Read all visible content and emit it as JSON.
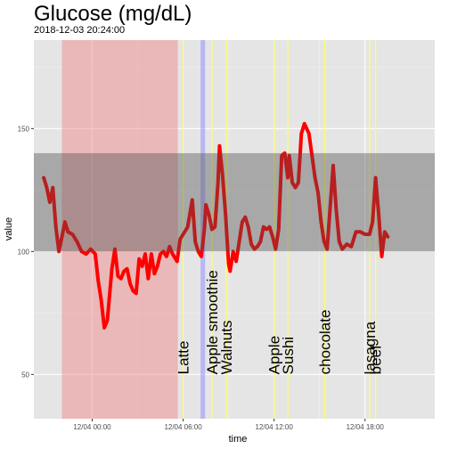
{
  "chart_data": {
    "type": "line",
    "title": "Glucose (mg/dL)",
    "subtitle": "2018-12-03 20:24:00",
    "xlabel": "time",
    "ylabel": "value",
    "x_ticks": [
      {
        "hour": 0,
        "label": "12/04 00:00"
      },
      {
        "hour": 6,
        "label": "12/04 06:00"
      },
      {
        "hour": 12,
        "label": "12/04 12:00"
      },
      {
        "hour": 18,
        "label": "12/04 18:00"
      }
    ],
    "y_ticks": [
      50,
      100,
      150
    ],
    "xlim_hours": [
      -3.85,
      22.6
    ],
    "ylim": [
      32,
      186
    ],
    "target_band": {
      "ymin": 100,
      "ymax": 140,
      "color": "#4d4d4d"
    },
    "sleep_region": {
      "start_hour": -2.0,
      "end_hour": 5.65,
      "color": "#f08080"
    },
    "activity_region": {
      "start_hour": 7.15,
      "end_hour": 7.45,
      "color": "#7f7fff"
    },
    "meal_marker_color": "#ffff66",
    "series": [
      {
        "line_color": "#ff0000",
        "points": [
          [
            -3.2,
            130
          ],
          [
            -3.0,
            126
          ],
          [
            -2.8,
            120
          ],
          [
            -2.6,
            126
          ],
          [
            -2.4,
            110
          ],
          [
            -2.2,
            100
          ],
          [
            -2.0,
            106
          ],
          [
            -1.8,
            112
          ],
          [
            -1.6,
            108
          ],
          [
            -1.3,
            107
          ],
          [
            -1.0,
            104
          ],
          [
            -0.7,
            100
          ],
          [
            -0.4,
            99
          ],
          [
            -0.1,
            101
          ],
          [
            0.2,
            99
          ],
          [
            0.4,
            88
          ],
          [
            0.6,
            80
          ],
          [
            0.8,
            69
          ],
          [
            1.0,
            72
          ],
          [
            1.3,
            93
          ],
          [
            1.5,
            101
          ],
          [
            1.7,
            90
          ],
          [
            1.9,
            89
          ],
          [
            2.1,
            92
          ],
          [
            2.3,
            93
          ],
          [
            2.5,
            87
          ],
          [
            2.7,
            84
          ],
          [
            2.9,
            83
          ],
          [
            3.1,
            97
          ],
          [
            3.3,
            94
          ],
          [
            3.5,
            99
          ],
          [
            3.7,
            89
          ],
          [
            3.9,
            99
          ],
          [
            4.1,
            91
          ],
          [
            4.3,
            94
          ],
          [
            4.5,
            99
          ],
          [
            4.7,
            100
          ],
          [
            4.9,
            98
          ],
          [
            5.1,
            102
          ],
          [
            5.3,
            99
          ],
          [
            5.6,
            96
          ],
          [
            5.8,
            105
          ],
          [
            6.0,
            107
          ],
          [
            6.3,
            110
          ],
          [
            6.6,
            121
          ],
          [
            6.8,
            104
          ],
          [
            7.0,
            100
          ],
          [
            7.2,
            98
          ],
          [
            7.4,
            109
          ],
          [
            7.5,
            119
          ],
          [
            7.7,
            115
          ],
          [
            7.9,
            109
          ],
          [
            8.1,
            110
          ],
          [
            8.3,
            128
          ],
          [
            8.4,
            143
          ],
          [
            8.6,
            131
          ],
          [
            8.8,
            115
          ],
          [
            9.0,
            95
          ],
          [
            9.1,
            92
          ],
          [
            9.3,
            100
          ],
          [
            9.5,
            96
          ],
          [
            9.7,
            104
          ],
          [
            9.9,
            112
          ],
          [
            10.1,
            114
          ],
          [
            10.3,
            110
          ],
          [
            10.5,
            103
          ],
          [
            10.7,
            101
          ],
          [
            10.9,
            102
          ],
          [
            11.1,
            104
          ],
          [
            11.3,
            110
          ],
          [
            11.5,
            109
          ],
          [
            11.7,
            110
          ],
          [
            11.9,
            106
          ],
          [
            12.1,
            101
          ],
          [
            12.3,
            109
          ],
          [
            12.5,
            139
          ],
          [
            12.7,
            140
          ],
          [
            12.9,
            130
          ],
          [
            13.0,
            139
          ],
          [
            13.2,
            128
          ],
          [
            13.4,
            126
          ],
          [
            13.6,
            128
          ],
          [
            13.8,
            148
          ],
          [
            14.0,
            152
          ],
          [
            14.3,
            148
          ],
          [
            14.5,
            139
          ],
          [
            14.7,
            130
          ],
          [
            14.9,
            124
          ],
          [
            15.1,
            112
          ],
          [
            15.3,
            104
          ],
          [
            15.5,
            101
          ],
          [
            15.7,
            118
          ],
          [
            15.9,
            135
          ],
          [
            16.1,
            117
          ],
          [
            16.3,
            104
          ],
          [
            16.5,
            101
          ],
          [
            16.8,
            103
          ],
          [
            17.1,
            102
          ],
          [
            17.4,
            108
          ],
          [
            17.7,
            108
          ],
          [
            18.0,
            107
          ],
          [
            18.3,
            107
          ],
          [
            18.5,
            112
          ],
          [
            18.7,
            130
          ],
          [
            18.9,
            115
          ],
          [
            19.1,
            98
          ],
          [
            19.3,
            108
          ],
          [
            19.5,
            106
          ]
        ]
      }
    ],
    "meal_annotations": [
      {
        "hour": 6.0,
        "label": "Latte"
      },
      {
        "hour": 7.9,
        "label": "Apple smoothie"
      },
      {
        "hour": 8.85,
        "label": "Walnuts"
      },
      {
        "hour": 12.0,
        "label": "Apple"
      },
      {
        "hour": 12.9,
        "label": "Sushi"
      },
      {
        "hour": 15.35,
        "label": "chocolate"
      },
      {
        "hour": 18.3,
        "label": "lasagna"
      },
      {
        "hour": 18.7,
        "label": "beef"
      }
    ]
  }
}
